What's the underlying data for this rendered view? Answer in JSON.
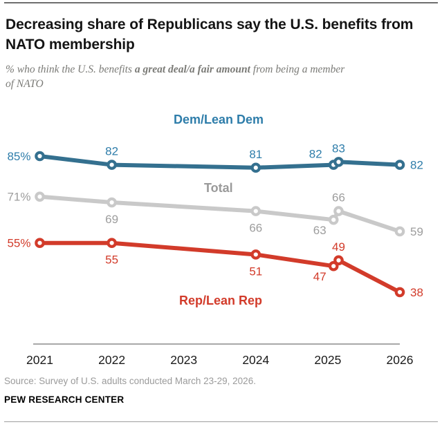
{
  "header": {
    "title": "Decreasing share of Republicans say the U.S. benefits from NATO membership",
    "subtitle_pre": "% who think the U.S. benefits ",
    "subtitle_bold": "a great deal/a fair amount",
    "subtitle_post": " from being a member of NATO"
  },
  "chart_data": {
    "type": "line",
    "x_ticks": [
      "2021",
      "2022",
      "2023",
      "2024",
      "2025",
      "2026"
    ],
    "x_years": [
      2021,
      2022,
      2024,
      2025.08,
      2025.15,
      2026
    ],
    "xlim": [
      2021,
      2026
    ],
    "ylim": [
      30,
      95
    ],
    "grid": false,
    "legend_position": "inline",
    "series": [
      {
        "name": "Dem/Lean Dem",
        "color": "#34708f",
        "label_color": "#2e7daa",
        "values": [
          85,
          82,
          81,
          82,
          83,
          82
        ],
        "point_labels": [
          "85%",
          "82",
          "81",
          "82",
          "83",
          "82"
        ]
      },
      {
        "name": "Total",
        "color": "#c9c9c9",
        "label_color": "#9d9d9d",
        "values": [
          71,
          69,
          66,
          63,
          66,
          59
        ],
        "point_labels": [
          "71%",
          "69",
          "66",
          "63",
          "66",
          "59"
        ]
      },
      {
        "name": "Rep/Lean Rep",
        "color": "#d23b2a",
        "label_color": "#d23b2a",
        "values": [
          55,
          55,
          51,
          47,
          49,
          38
        ],
        "point_labels": [
          "55%",
          "55",
          "51",
          "47",
          "49",
          "38"
        ]
      }
    ]
  },
  "footer": {
    "source": "Source: Survey of U.S. adults conducted March 23-29, 2026.",
    "brand": "PEW RESEARCH CENTER"
  }
}
